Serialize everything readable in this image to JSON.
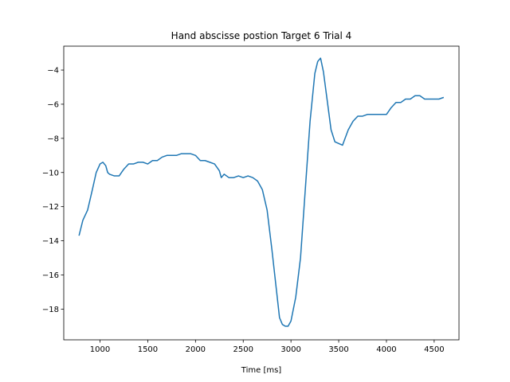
{
  "chart_data": {
    "type": "line",
    "title": "Hand abscisse postion Target 6 Trial 4",
    "xlabel": "Time [ms]",
    "ylabel": "",
    "xlim": [
      620,
      4760
    ],
    "ylim": [
      -19.8,
      -2.6
    ],
    "x_ticks": [
      1000,
      1500,
      2000,
      2500,
      3000,
      3500,
      4000,
      4500
    ],
    "x_tick_labels": [
      "1000",
      "1500",
      "2000",
      "2500",
      "3000",
      "3500",
      "4000",
      "4500"
    ],
    "y_ticks": [
      -18,
      -16,
      -14,
      -12,
      -10,
      -8,
      -6,
      -4
    ],
    "y_tick_labels": [
      "−18",
      "−16",
      "−14",
      "−12",
      "−10",
      "−8",
      "−6",
      "−4"
    ],
    "grid": false,
    "legend": "none",
    "series": [
      {
        "color": "#1f77b4",
        "x": [
          780,
          820,
          870,
          920,
          960,
          1000,
          1030,
          1060,
          1080,
          1100,
          1150,
          1200,
          1250,
          1300,
          1350,
          1400,
          1450,
          1500,
          1550,
          1600,
          1650,
          1700,
          1750,
          1800,
          1850,
          1900,
          1950,
          2000,
          2050,
          2100,
          2150,
          2200,
          2250,
          2270,
          2300,
          2350,
          2400,
          2450,
          2500,
          2550,
          2600,
          2650,
          2700,
          2750,
          2800,
          2850,
          2880,
          2910,
          2940,
          2970,
          3000,
          3050,
          3100,
          3150,
          3200,
          3250,
          3280,
          3310,
          3340,
          3380,
          3420,
          3460,
          3500,
          3540,
          3560,
          3600,
          3650,
          3700,
          3750,
          3800,
          3850,
          3900,
          3950,
          4000,
          4050,
          4100,
          4150,
          4200,
          4250,
          4300,
          4350,
          4400,
          4450,
          4500,
          4550,
          4600
        ],
        "y": [
          -13.7,
          -12.8,
          -12.2,
          -11.0,
          -10.0,
          -9.5,
          -9.4,
          -9.6,
          -10.0,
          -10.1,
          -10.2,
          -10.2,
          -9.8,
          -9.5,
          -9.5,
          -9.4,
          -9.4,
          -9.5,
          -9.3,
          -9.3,
          -9.1,
          -9.0,
          -9.0,
          -9.0,
          -8.9,
          -8.9,
          -8.9,
          -9.0,
          -9.3,
          -9.3,
          -9.4,
          -9.5,
          -9.9,
          -10.3,
          -10.1,
          -10.3,
          -10.3,
          -10.2,
          -10.3,
          -10.2,
          -10.3,
          -10.5,
          -11.0,
          -12.2,
          -14.5,
          -17.0,
          -18.5,
          -18.9,
          -19.0,
          -19.0,
          -18.7,
          -17.3,
          -15.0,
          -11.0,
          -7.0,
          -4.2,
          -3.5,
          -3.3,
          -4.1,
          -5.8,
          -7.5,
          -8.2,
          -8.3,
          -8.4,
          -8.1,
          -7.5,
          -7.0,
          -6.7,
          -6.7,
          -6.6,
          -6.6,
          -6.6,
          -6.6,
          -6.6,
          -6.2,
          -5.9,
          -5.9,
          -5.7,
          -5.7,
          -5.5,
          -5.5,
          -5.7,
          -5.7,
          -5.7,
          -5.7,
          -5.6
        ]
      }
    ]
  }
}
